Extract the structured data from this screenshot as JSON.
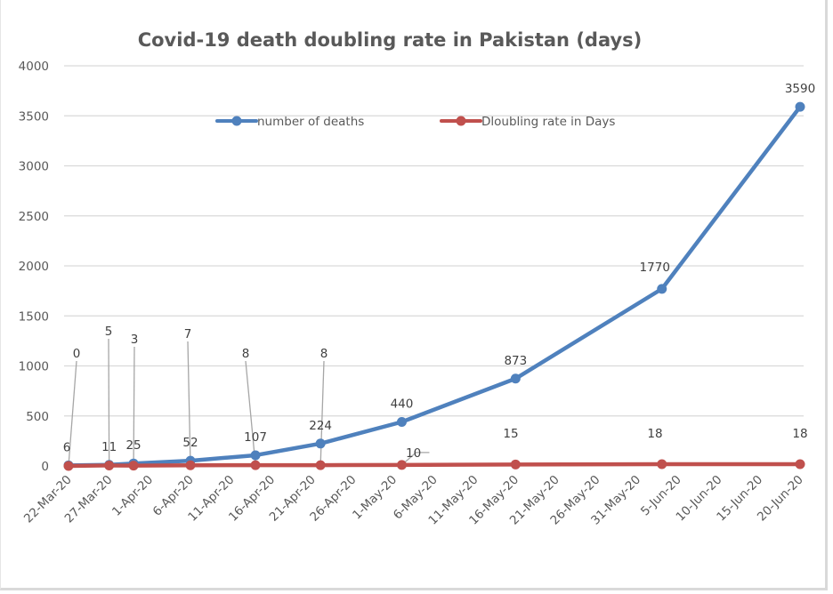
{
  "chart_data": {
    "type": "line",
    "title": "Covid-19 death doubling rate in Pakistan (days)",
    "xlabel": "",
    "ylabel": "",
    "ylim": [
      0,
      4000
    ],
    "yticks": [
      0,
      500,
      1000,
      1500,
      2000,
      2500,
      3000,
      3500,
      4000
    ],
    "grid": true,
    "legend_position": "top-center",
    "x_axis": {
      "type": "date",
      "start": "22-Mar-20",
      "end": "20-Jun-20",
      "tick_labels": [
        "22-Mar-20",
        "27-Mar-20",
        "1-Apr-20",
        "6-Apr-20",
        "11-Apr-20",
        "16-Apr-20",
        "21-Apr-20",
        "26-Apr-20",
        "1-May-20",
        "6-May-20",
        "11-May-20",
        "16-May-20",
        "21-May-20",
        "26-May-20",
        "31-May-20",
        "5-Jun-20",
        "10-Jun-20",
        "15-Jun-20",
        "20-Jun-20"
      ]
    },
    "x_day_offsets": [
      0,
      5,
      8,
      15,
      23,
      31,
      41,
      55,
      73,
      90
    ],
    "series": [
      {
        "name": "number of deaths",
        "color": "#4f81bd",
        "values": [
          6,
          11,
          25,
          52,
          107,
          224,
          440,
          873,
          1770,
          3590
        ],
        "labels": [
          "6",
          "11",
          "25",
          "52",
          "107",
          "224",
          "440",
          "873",
          "1770",
          "3590"
        ]
      },
      {
        "name": "Dloubling rate in Days",
        "color": "#c0504d",
        "values": [
          0,
          5,
          3,
          7,
          8,
          8,
          10,
          15,
          18,
          18
        ],
        "labels": [
          "0",
          "5",
          "3",
          "7",
          "8",
          "8",
          "10",
          "15",
          "18",
          "18"
        ]
      }
    ]
  }
}
